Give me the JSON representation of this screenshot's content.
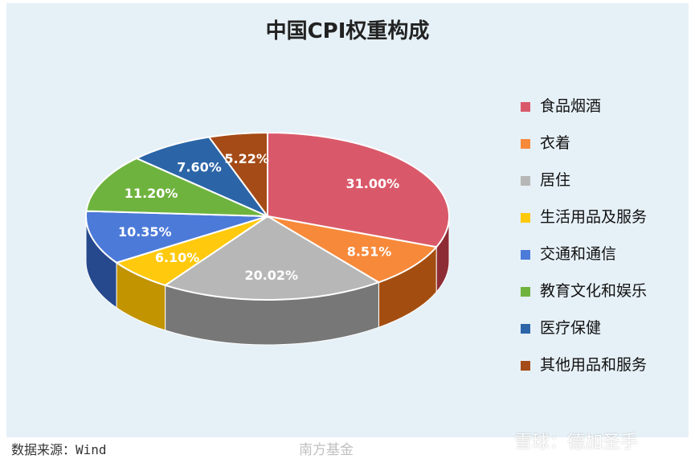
{
  "chart_data": {
    "type": "pie",
    "title": "中国CPI权重构成",
    "legend_position": "right",
    "categories": [
      "食品烟酒",
      "衣着",
      "居住",
      "生活用品及服务",
      "交通和通信",
      "教育文化和娱乐",
      "医疗保健",
      "其他用品和服务"
    ],
    "values": [
      31.0,
      8.51,
      20.02,
      6.1,
      10.35,
      11.2,
      7.6,
      5.22
    ],
    "labels": [
      "31.00%",
      "8.51%",
      "20.02%",
      "6.10%",
      "10.35%",
      "11.20%",
      "7.60%",
      "5.22%"
    ],
    "colors": [
      "#d9596a",
      "#f7893a",
      "#b7b7b7",
      "#ffc90e",
      "#4c7ad8",
      "#6fb33f",
      "#2b65a8",
      "#a54b17"
    ],
    "side_colors": [
      "#8e2c35",
      "#a34e10",
      "#777777",
      "#c19400",
      "#26498d",
      "#447424",
      "#153d68",
      "#6a2e0b"
    ]
  },
  "source": "数据来源：Wind",
  "watermarks": {
    "center": "南方基金",
    "right": "雪球：德加圣手"
  }
}
